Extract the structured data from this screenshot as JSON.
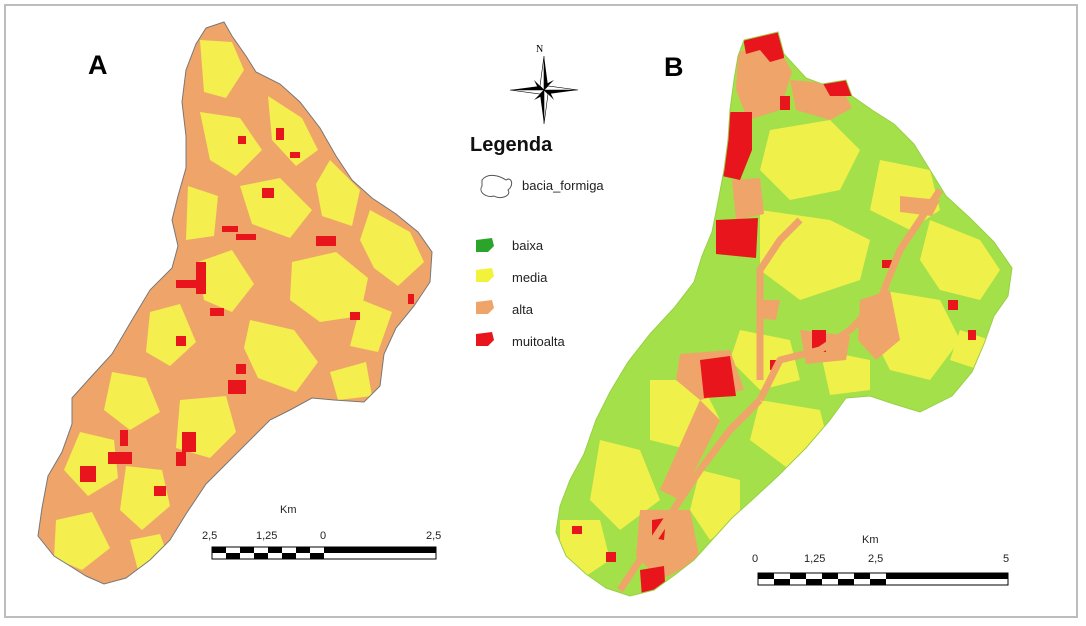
{
  "panels": {
    "a": {
      "letter": "A"
    },
    "b": {
      "letter": "B"
    }
  },
  "north_arrow": {
    "label": "N"
  },
  "legend": {
    "title": "Legenda",
    "boundary_label": "bacia_formiga",
    "classes": [
      {
        "label": "baixa",
        "color": "#2aa52a"
      },
      {
        "label": "media",
        "color": "#f2f23a"
      },
      {
        "label": "alta",
        "color": "#efa56a"
      },
      {
        "label": "muitoalta",
        "color": "#e8161c"
      }
    ]
  },
  "scale_bar_a": {
    "unit": "Km",
    "ticks": [
      "2,5",
      "1,25",
      "0",
      "2,5"
    ]
  },
  "scale_bar_b": {
    "unit": "Km",
    "ticks": [
      "0",
      "1,25",
      "2,5",
      "5"
    ]
  },
  "colors": {
    "map_a_base": "#efa56a",
    "map_a_fill": "#f4ee4e",
    "map_b_base": "#a3e04a",
    "map_b_fill": "#f0f04a",
    "patch_red": "#e8161c",
    "patch_orange": "#efa56a"
  }
}
